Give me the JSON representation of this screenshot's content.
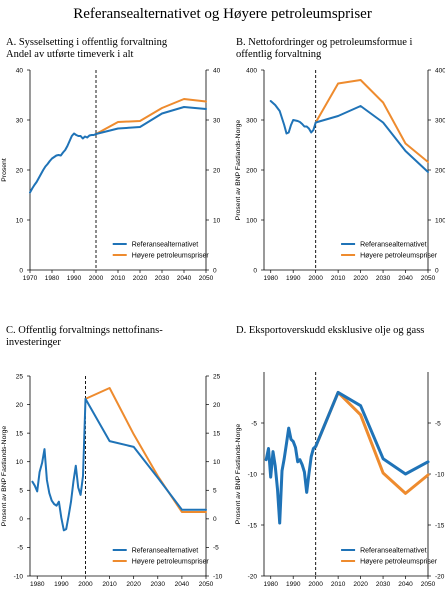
{
  "title": "Referansealternativet og Høyere petroleumspriser",
  "colors": {
    "reference": "#1f73b7",
    "high_price": "#ee8b2e",
    "axis": "#000000"
  },
  "chart_data": [
    {
      "panel": "A",
      "type": "line",
      "title_lines": [
        "A.  Sysselsetting i offentlig forvaltning",
        "Andel av utførte timeverk i alt"
      ],
      "ylabel": "Prosent",
      "xlim": [
        1970,
        2050
      ],
      "ylim": [
        0,
        40
      ],
      "xticks": [
        1970,
        1980,
        1990,
        2000,
        2010,
        2020,
        2030,
        2040,
        2050
      ],
      "yticks": [
        0,
        10,
        20,
        30,
        40
      ],
      "vline": 2000,
      "line_weight": "normal",
      "series": [
        {
          "name": "Referansealternativet",
          "color": "reference",
          "x": [
            1970,
            1971,
            1972,
            1973,
            1974,
            1975,
            1976,
            1977,
            1978,
            1979,
            1980,
            1981,
            1982,
            1983,
            1984,
            1985,
            1986,
            1987,
            1988,
            1989,
            1990,
            1991,
            1992,
            1993,
            1994,
            1995,
            1996,
            1997,
            1998,
            1999,
            2000,
            2010,
            2020,
            2030,
            2040,
            2050
          ],
          "y": [
            15.5,
            16.3,
            17.0,
            17.6,
            18.4,
            19.2,
            20.0,
            20.7,
            21.2,
            21.8,
            22.3,
            22.6,
            22.9,
            23.0,
            22.9,
            23.5,
            24.0,
            24.8,
            25.8,
            26.8,
            27.3,
            27.0,
            26.8,
            26.8,
            26.3,
            26.7,
            26.5,
            26.9,
            27.0,
            27.0,
            27.2,
            28.3,
            28.6,
            31.3,
            32.6,
            32.2
          ]
        },
        {
          "name": "Høyere petroleumspriser",
          "color": "high_price",
          "x": [
            2000,
            2010,
            2020,
            2030,
            2040,
            2050
          ],
          "y": [
            27.2,
            29.6,
            29.8,
            32.4,
            34.2,
            33.7
          ]
        }
      ],
      "legend": "bottom-right"
    },
    {
      "panel": "B",
      "type": "line",
      "title_lines": [
        "B.  Nettofordringer og petroleumsformue i",
        "offentlig forvaltning"
      ],
      "ylabel": "Prosent av BNP Fastlands-Norge",
      "xlim": [
        1977,
        2050
      ],
      "ylim": [
        0,
        400
      ],
      "xticks": [
        1980,
        1990,
        2000,
        2010,
        2020,
        2030,
        2040,
        2050
      ],
      "yticks": [
        0,
        100,
        200,
        300,
        400
      ],
      "vline": 2000,
      "line_weight": "normal",
      "series": [
        {
          "name": "Referansealternativet",
          "color": "reference",
          "x": [
            1980,
            1982,
            1984,
            1986,
            1987,
            1988,
            1989,
            1990,
            1992,
            1993,
            1994,
            1995,
            1996,
            1997,
            1998,
            1999,
            2000,
            2010,
            2020,
            2030,
            2040,
            2050
          ],
          "y": [
            338,
            330,
            318,
            290,
            273,
            275,
            290,
            300,
            298,
            296,
            292,
            287,
            287,
            283,
            275,
            280,
            295,
            308,
            328,
            295,
            238,
            196
          ]
        },
        {
          "name": "Høyere petroleumspriser",
          "color": "high_price",
          "x": [
            2000,
            2010,
            2020,
            2030,
            2040,
            2050
          ],
          "y": [
            295,
            373,
            380,
            335,
            253,
            216
          ]
        }
      ],
      "legend": "bottom-right"
    },
    {
      "panel": "C",
      "type": "line",
      "title_lines": [
        "C.  Offentlig forvaltnings nettofinans-",
        "investeringer"
      ],
      "ylabel": "Prosent av BNP Fastlands-Norge",
      "xlim": [
        1977,
        2050
      ],
      "ylim": [
        -10,
        25
      ],
      "xticks": [
        1980,
        1990,
        2000,
        2010,
        2020,
        2030,
        2040,
        2050
      ],
      "yticks": [
        -10,
        -5,
        0,
        5,
        10,
        15,
        20,
        25
      ],
      "vline": 2000,
      "line_weight": "normal",
      "series": [
        {
          "name": "Referansealternativet",
          "color": "reference",
          "x": [
            1978,
            1979,
            1980,
            1981,
            1982,
            1983,
            1984,
            1985,
            1986,
            1987,
            1988,
            1989,
            1990,
            1991,
            1992,
            1993,
            1994,
            1995,
            1996,
            1997,
            1998,
            1999,
            2000,
            2010,
            2020,
            2030,
            2040,
            2050
          ],
          "y": [
            6.5,
            5.8,
            4.8,
            8.2,
            9.8,
            12.2,
            6.8,
            4.5,
            3.2,
            2.6,
            2.3,
            3.0,
            0.2,
            -2.0,
            -1.8,
            0.5,
            3.0,
            6.5,
            9.3,
            5.5,
            4.2,
            7.5,
            21.0,
            13.6,
            12.6,
            7.2,
            1.6,
            1.6
          ]
        },
        {
          "name": "Høyere petroleumspriser",
          "color": "high_price",
          "x": [
            2000,
            2010,
            2020,
            2030,
            2040,
            2050
          ],
          "y": [
            21.0,
            22.9,
            14.8,
            7.5,
            1.2,
            1.2
          ]
        }
      ],
      "legend": "bottom-right"
    },
    {
      "panel": "D",
      "type": "line",
      "title_lines": [
        "D.  Eksportoverskudd eksklusive olje og gass"
      ],
      "ylabel": "Prosent av BNP Fastlands-Norge",
      "xlim": [
        1977,
        2050
      ],
      "ylim": [
        -20,
        0
      ],
      "xticks": [
        1980,
        1990,
        2000,
        2010,
        2020,
        2030,
        2040,
        2050
      ],
      "yticks": [
        -20,
        -15,
        -10,
        -5
      ],
      "vline": 2000,
      "line_weight": "thick",
      "series": [
        {
          "name": "Referansealternativet",
          "color": "reference",
          "x": [
            1978,
            1979,
            1980,
            1981,
            1982,
            1983,
            1984,
            1985,
            1986,
            1987,
            1988,
            1989,
            1990,
            1991,
            1992,
            1993,
            1994,
            1995,
            1996,
            1997,
            1998,
            1999,
            2000,
            2010,
            2020,
            2030,
            2040,
            2050
          ],
          "y": [
            -8.6,
            -7.5,
            -10.3,
            -7.8,
            -9.2,
            -11.5,
            -14.8,
            -9.7,
            -8.5,
            -7.0,
            -5.5,
            -6.6,
            -6.8,
            -7.4,
            -8.8,
            -8.6,
            -9.1,
            -9.8,
            -11.8,
            -10.0,
            -8.3,
            -7.5,
            -7.3,
            -2.0,
            -3.3,
            -8.5,
            -10.0,
            -8.8
          ]
        },
        {
          "name": "Høyere petroleumspriser",
          "color": "high_price",
          "x": [
            2000,
            2010,
            2020,
            2030,
            2040,
            2050
          ],
          "y": [
            -7.3,
            -2.0,
            -4.2,
            -9.9,
            -11.9,
            -10.1
          ]
        }
      ],
      "legend": "bottom-right"
    }
  ]
}
